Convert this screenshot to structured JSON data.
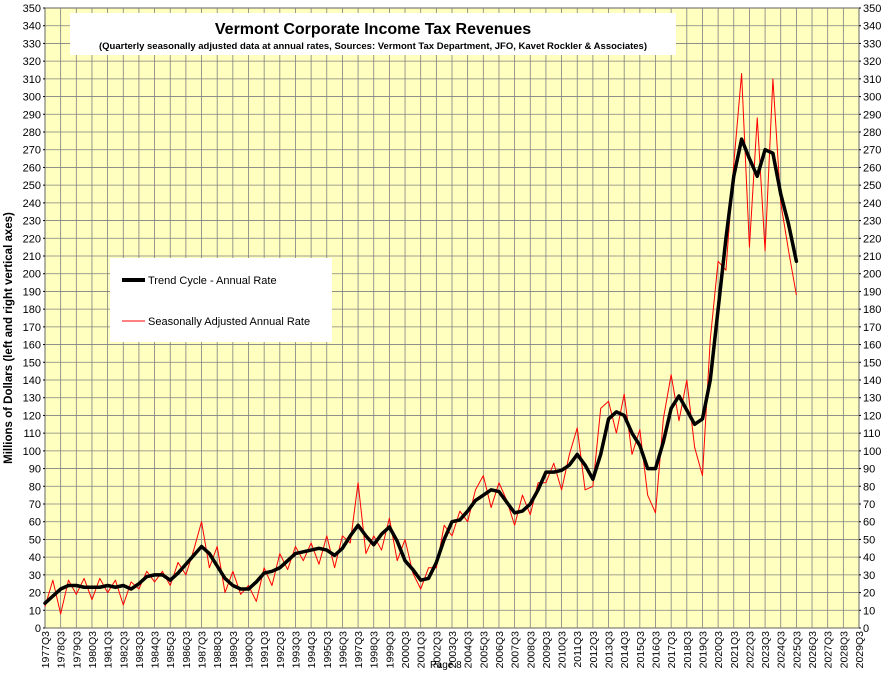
{
  "chart_data": {
    "type": "line",
    "title": "Vermont Corporate Income Tax Revenues",
    "subtitle": "(Quarterly seasonally adjusted data at annual rates, Sources:  Vermont Tax Department, JFO, Kavet Rockler & Associates)",
    "ylabel": "Millions of Dollars  (left and right vertical axes)",
    "xlabel": "",
    "ylim": [
      0,
      350
    ],
    "y_ticks": [
      0,
      10,
      20,
      30,
      40,
      50,
      60,
      70,
      80,
      90,
      100,
      110,
      120,
      130,
      140,
      150,
      160,
      170,
      180,
      190,
      200,
      210,
      220,
      230,
      240,
      250,
      260,
      270,
      280,
      290,
      300,
      310,
      320,
      330,
      340,
      350
    ],
    "x_tick_labels": [
      "1977Q3",
      "1978Q3",
      "1979Q3",
      "1980Q3",
      "1981Q3",
      "1982Q3",
      "1983Q3",
      "1984Q3",
      "1985Q3",
      "1986Q3",
      "1987Q3",
      "1988Q3",
      "1989Q3",
      "1990Q3",
      "1991Q3",
      "1992Q3",
      "1993Q3",
      "1994Q3",
      "1995Q3",
      "1996Q3",
      "1997Q3",
      "1998Q3",
      "1999Q3",
      "2000Q3",
      "2001Q3",
      "2002Q3",
      "2003Q3",
      "2004Q3",
      "2005Q3",
      "2006Q3",
      "2007Q3",
      "2008Q3",
      "2009Q3",
      "2010Q3",
      "2011Q3",
      "2012Q3",
      "2013Q3",
      "2014Q3",
      "2015Q3",
      "2016Q3",
      "2017Q3",
      "2018Q3",
      "2019Q3",
      "2020Q3",
      "2021Q3",
      "2022Q3",
      "2023Q3",
      "2024Q3",
      "2025Q3",
      "2026Q3",
      "2027Q3",
      "2028Q3",
      "2029Q3"
    ],
    "grid": true,
    "legend_position": "left-middle",
    "background_color": "#ffffc0",
    "series": [
      {
        "name": "Trend Cycle - Annual Rate",
        "color": "#000000",
        "points": [
          [
            "1977Q3",
            14
          ],
          [
            "1978Q1",
            18
          ],
          [
            "1978Q3",
            22
          ],
          [
            "1979Q1",
            24
          ],
          [
            "1979Q3",
            24
          ],
          [
            "1980Q1",
            23
          ],
          [
            "1980Q3",
            23
          ],
          [
            "1981Q1",
            23
          ],
          [
            "1981Q3",
            24
          ],
          [
            "1982Q1",
            23
          ],
          [
            "1982Q3",
            24
          ],
          [
            "1983Q1",
            22
          ],
          [
            "1983Q3",
            25
          ],
          [
            "1984Q1",
            29
          ],
          [
            "1984Q3",
            30
          ],
          [
            "1985Q1",
            30
          ],
          [
            "1985Q3",
            27
          ],
          [
            "1986Q1",
            31
          ],
          [
            "1986Q3",
            36
          ],
          [
            "1987Q1",
            41
          ],
          [
            "1987Q3",
            46
          ],
          [
            "1988Q1",
            42
          ],
          [
            "1988Q3",
            35
          ],
          [
            "1989Q1",
            28
          ],
          [
            "1989Q3",
            24
          ],
          [
            "1990Q1",
            22
          ],
          [
            "1990Q3",
            22
          ],
          [
            "1991Q1",
            26
          ],
          [
            "1991Q3",
            31
          ],
          [
            "1992Q1",
            32
          ],
          [
            "1992Q3",
            34
          ],
          [
            "1993Q1",
            38
          ],
          [
            "1993Q3",
            42
          ],
          [
            "1994Q1",
            43
          ],
          [
            "1994Q3",
            44
          ],
          [
            "1995Q1",
            45
          ],
          [
            "1995Q3",
            44
          ],
          [
            "1996Q1",
            41
          ],
          [
            "1996Q3",
            45
          ],
          [
            "1997Q1",
            52
          ],
          [
            "1997Q3",
            58
          ],
          [
            "1998Q1",
            52
          ],
          [
            "1998Q3",
            47
          ],
          [
            "1999Q1",
            53
          ],
          [
            "1999Q3",
            57
          ],
          [
            "2000Q1",
            49
          ],
          [
            "2000Q3",
            38
          ],
          [
            "2001Q1",
            33
          ],
          [
            "2001Q3",
            27
          ],
          [
            "2002Q1",
            28
          ],
          [
            "2002Q3",
            37
          ],
          [
            "2003Q1",
            50
          ],
          [
            "2003Q3",
            60
          ],
          [
            "2004Q1",
            61
          ],
          [
            "2004Q3",
            66
          ],
          [
            "2005Q1",
            72
          ],
          [
            "2005Q3",
            75
          ],
          [
            "2006Q1",
            78
          ],
          [
            "2006Q3",
            77
          ],
          [
            "2007Q1",
            71
          ],
          [
            "2007Q3",
            65
          ],
          [
            "2008Q1",
            66
          ],
          [
            "2008Q3",
            70
          ],
          [
            "2009Q1",
            78
          ],
          [
            "2009Q3",
            88
          ],
          [
            "2010Q1",
            88
          ],
          [
            "2010Q3",
            89
          ],
          [
            "2011Q1",
            92
          ],
          [
            "2011Q3",
            98
          ],
          [
            "2012Q1",
            92
          ],
          [
            "2012Q3",
            84
          ],
          [
            "2013Q1",
            98
          ],
          [
            "2013Q3",
            118
          ],
          [
            "2014Q1",
            122
          ],
          [
            "2014Q3",
            120
          ],
          [
            "2015Q1",
            110
          ],
          [
            "2015Q3",
            103
          ],
          [
            "2016Q1",
            90
          ],
          [
            "2016Q3",
            90
          ],
          [
            "2017Q1",
            105
          ],
          [
            "2017Q3",
            124
          ],
          [
            "2018Q1",
            131
          ],
          [
            "2018Q3",
            123
          ],
          [
            "2019Q1",
            115
          ],
          [
            "2019Q3",
            118
          ],
          [
            "2020Q1",
            140
          ],
          [
            "2020Q3",
            180
          ],
          [
            "2021Q1",
            220
          ],
          [
            "2021Q3",
            255
          ],
          [
            "2022Q1",
            276
          ],
          [
            "2022Q3",
            265
          ],
          [
            "2023Q1",
            255
          ],
          [
            "2023Q3",
            270
          ],
          [
            "2024Q1",
            268
          ],
          [
            "2024Q3",
            245
          ],
          [
            "2025Q1",
            228
          ],
          [
            "2025Q3",
            207
          ]
        ]
      },
      {
        "name": "Seasonally Adjusted Annual Rate",
        "color": "#ff0000",
        "points": [
          [
            "1977Q3",
            12
          ],
          [
            "1978Q1",
            27
          ],
          [
            "1978Q3",
            8
          ],
          [
            "1979Q1",
            27
          ],
          [
            "1979Q3",
            19
          ],
          [
            "1980Q1",
            28
          ],
          [
            "1980Q3",
            16
          ],
          [
            "1981Q1",
            28
          ],
          [
            "1981Q3",
            20
          ],
          [
            "1982Q1",
            27
          ],
          [
            "1982Q3",
            13
          ],
          [
            "1983Q1",
            26
          ],
          [
            "1983Q3",
            22
          ],
          [
            "1984Q1",
            32
          ],
          [
            "1984Q3",
            26
          ],
          [
            "1985Q1",
            32
          ],
          [
            "1985Q3",
            24
          ],
          [
            "1986Q1",
            37
          ],
          [
            "1986Q3",
            30
          ],
          [
            "1987Q1",
            44
          ],
          [
            "1987Q3",
            60
          ],
          [
            "1988Q1",
            34
          ],
          [
            "1988Q3",
            46
          ],
          [
            "1989Q1",
            20
          ],
          [
            "1989Q3",
            32
          ],
          [
            "1990Q1",
            19
          ],
          [
            "1990Q3",
            24
          ],
          [
            "1991Q1",
            15
          ],
          [
            "1991Q3",
            34
          ],
          [
            "1992Q1",
            24
          ],
          [
            "1992Q3",
            42
          ],
          [
            "1993Q1",
            33
          ],
          [
            "1993Q3",
            46
          ],
          [
            "1994Q1",
            38
          ],
          [
            "1994Q3",
            48
          ],
          [
            "1995Q1",
            36
          ],
          [
            "1995Q3",
            52
          ],
          [
            "1996Q1",
            34
          ],
          [
            "1996Q3",
            52
          ],
          [
            "1997Q1",
            48
          ],
          [
            "1997Q3",
            82
          ],
          [
            "1998Q1",
            42
          ],
          [
            "1998Q3",
            52
          ],
          [
            "1999Q1",
            44
          ],
          [
            "1999Q3",
            62
          ],
          [
            "2000Q1",
            38
          ],
          [
            "2000Q3",
            50
          ],
          [
            "2001Q1",
            31
          ],
          [
            "2001Q3",
            22
          ],
          [
            "2002Q1",
            34
          ],
          [
            "2002Q3",
            34
          ],
          [
            "2003Q1",
            58
          ],
          [
            "2003Q3",
            52
          ],
          [
            "2004Q1",
            66
          ],
          [
            "2004Q3",
            60
          ],
          [
            "2005Q1",
            78
          ],
          [
            "2005Q3",
            86
          ],
          [
            "2006Q1",
            68
          ],
          [
            "2006Q3",
            82
          ],
          [
            "2007Q1",
            72
          ],
          [
            "2007Q3",
            58
          ],
          [
            "2008Q1",
            75
          ],
          [
            "2008Q3",
            64
          ],
          [
            "2009Q1",
            82
          ],
          [
            "2009Q3",
            82
          ],
          [
            "2010Q1",
            93
          ],
          [
            "2010Q3",
            78
          ],
          [
            "2011Q1",
            98
          ],
          [
            "2011Q3",
            113
          ],
          [
            "2012Q1",
            78
          ],
          [
            "2012Q3",
            80
          ],
          [
            "2013Q1",
            124
          ],
          [
            "2013Q3",
            128
          ],
          [
            "2014Q1",
            110
          ],
          [
            "2014Q3",
            132
          ],
          [
            "2015Q1",
            98
          ],
          [
            "2015Q3",
            112
          ],
          [
            "2016Q1",
            75
          ],
          [
            "2016Q3",
            65
          ],
          [
            "2017Q1",
            118
          ],
          [
            "2017Q3",
            143
          ],
          [
            "2018Q1",
            117
          ],
          [
            "2018Q3",
            140
          ],
          [
            "2019Q1",
            102
          ],
          [
            "2019Q3",
            86
          ],
          [
            "2020Q1",
            163
          ],
          [
            "2020Q3",
            207
          ],
          [
            "2021Q1",
            202
          ],
          [
            "2021Q3",
            262
          ],
          [
            "2022Q1",
            313
          ],
          [
            "2022Q3",
            215
          ],
          [
            "2023Q1",
            288
          ],
          [
            "2023Q3",
            213
          ],
          [
            "2024Q1",
            310
          ],
          [
            "2024Q3",
            240
          ],
          [
            "2025Q1",
            213
          ],
          [
            "2025Q3",
            188
          ]
        ]
      }
    ]
  },
  "footer": {
    "text": "Page 8"
  }
}
